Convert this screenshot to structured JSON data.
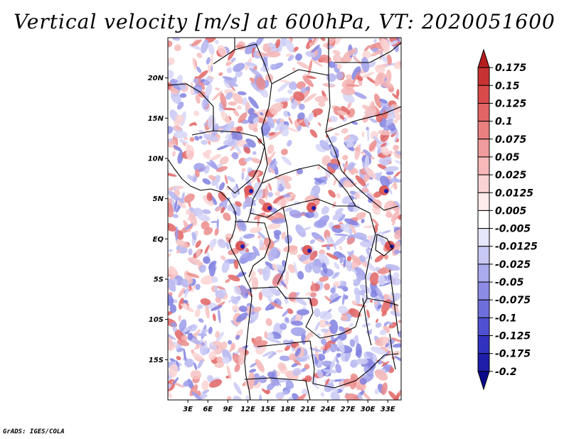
{
  "title": "Vertical velocity [m/s] at 600hPa, VT: 2020051600",
  "map": {
    "variable": "Vertical velocity",
    "units": "m/s",
    "level": "600hPa",
    "valid_time": "2020051600",
    "lon_range": [
      0,
      35
    ],
    "lat_range": [
      -20,
      25
    ],
    "lat_ticks": [
      {
        "value": 20,
        "label": "20N"
      },
      {
        "value": 15,
        "label": "15N"
      },
      {
        "value": 10,
        "label": "10N"
      },
      {
        "value": 5,
        "label": "5N"
      },
      {
        "value": 0,
        "label": "EQ"
      },
      {
        "value": -5,
        "label": "5S"
      },
      {
        "value": -10,
        "label": "10S"
      },
      {
        "value": -15,
        "label": "15S"
      }
    ],
    "lon_ticks": [
      {
        "value": 3,
        "label": "3E"
      },
      {
        "value": 6,
        "label": "6E"
      },
      {
        "value": 9,
        "label": "9E"
      },
      {
        "value": 12,
        "label": "12E"
      },
      {
        "value": 15,
        "label": "15E"
      },
      {
        "value": 18,
        "label": "18E"
      },
      {
        "value": 21,
        "label": "21E"
      },
      {
        "value": 24,
        "label": "24E"
      },
      {
        "value": 27,
        "label": "27E"
      },
      {
        "value": 30,
        "label": "30E"
      },
      {
        "value": 33,
        "label": "33E"
      }
    ]
  },
  "colorbar": {
    "labels": [
      "0.175",
      "0.15",
      "0.125",
      "0.1",
      "0.075",
      "0.05",
      "0.025",
      "0.0125",
      "0.005",
      "-0.005",
      "-0.0125",
      "-0.025",
      "-0.05",
      "-0.075",
      "-0.1",
      "-0.125",
      "-0.175",
      "-0.2"
    ],
    "colors": [
      "#b41e1e",
      "#c83232",
      "#d94a4a",
      "#e26464",
      "#ea8080",
      "#f09c9c",
      "#f6b8b8",
      "#fad4d4",
      "#fdeaea",
      "#ffffff",
      "#e6e6fa",
      "#c8c8f4",
      "#aaaaee",
      "#8c8ce6",
      "#6e6edc",
      "#5050d2",
      "#3232c0",
      "#1e1eaa",
      "#0a0a8c"
    ]
  },
  "credit": "GrADS: IGES/COLA"
}
